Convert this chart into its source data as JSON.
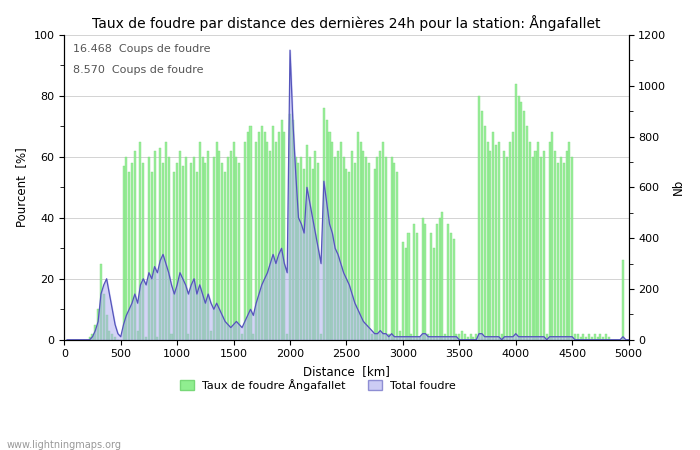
{
  "title": "Taux de foudre par distance des dernières 24h pour la station: Ångafallet",
  "xlabel": "Distance  [km]",
  "ylabel_left": "Pourcent  [%]",
  "ylabel_right": "Nb",
  "annotation_line1": "16.468  Coups de foudre",
  "annotation_line2": "8.570  Coups de foudre",
  "legend_label1": "Taux de foudre Ångafallet",
  "legend_label2": "Total foudre",
  "watermark": "www.lightningmaps.org",
  "xlim": [
    0,
    5000
  ],
  "ylim_left": [
    0,
    100
  ],
  "ylim_right": [
    0,
    1200
  ],
  "bar_color": "#90EE90",
  "bar_edge_color": "#78D878",
  "line_color": "#AAAAEE",
  "line_color2": "#5555BB",
  "bg_color": "#FFFFFF",
  "grid_color": "#999999",
  "title_fontsize": 10,
  "label_fontsize": 8.5,
  "tick_fontsize": 8,
  "x_ticks": [
    0,
    500,
    1000,
    1500,
    2000,
    2500,
    3000,
    3500,
    4000,
    4500,
    5000
  ],
  "y_ticks_left": [
    0,
    20,
    40,
    60,
    80,
    100
  ],
  "y_ticks_right": [
    0,
    200,
    400,
    600,
    800,
    1000,
    1200
  ],
  "bar_positions": [
    25,
    50,
    75,
    100,
    125,
    150,
    175,
    200,
    225,
    250,
    275,
    300,
    325,
    350,
    375,
    400,
    425,
    450,
    475,
    500,
    525,
    550,
    575,
    600,
    625,
    650,
    675,
    700,
    725,
    750,
    775,
    800,
    825,
    850,
    875,
    900,
    925,
    950,
    975,
    1000,
    1025,
    1050,
    1075,
    1100,
    1125,
    1150,
    1175,
    1200,
    1225,
    1250,
    1275,
    1300,
    1325,
    1350,
    1375,
    1400,
    1425,
    1450,
    1475,
    1500,
    1525,
    1550,
    1575,
    1600,
    1625,
    1650,
    1675,
    1700,
    1725,
    1750,
    1775,
    1800,
    1825,
    1850,
    1875,
    1900,
    1925,
    1950,
    1975,
    2000,
    2025,
    2050,
    2075,
    2100,
    2125,
    2150,
    2175,
    2200,
    2225,
    2250,
    2275,
    2300,
    2325,
    2350,
    2375,
    2400,
    2425,
    2450,
    2475,
    2500,
    2525,
    2550,
    2575,
    2600,
    2625,
    2650,
    2675,
    2700,
    2725,
    2750,
    2775,
    2800,
    2825,
    2850,
    2875,
    2900,
    2925,
    2950,
    2975,
    3000,
    3025,
    3050,
    3075,
    3100,
    3125,
    3150,
    3175,
    3200,
    3225,
    3250,
    3275,
    3300,
    3325,
    3350,
    3375,
    3400,
    3425,
    3450,
    3475,
    3500,
    3525,
    3550,
    3575,
    3600,
    3625,
    3650,
    3675,
    3700,
    3725,
    3750,
    3775,
    3800,
    3825,
    3850,
    3875,
    3900,
    3925,
    3950,
    3975,
    4000,
    4025,
    4050,
    4075,
    4100,
    4125,
    4150,
    4175,
    4200,
    4225,
    4250,
    4275,
    4300,
    4325,
    4350,
    4375,
    4400,
    4425,
    4450,
    4475,
    4500,
    4525,
    4550,
    4575,
    4600,
    4625,
    4650,
    4675,
    4700,
    4725,
    4750,
    4775,
    4800,
    4825,
    4850,
    4875,
    4900,
    4925,
    4950,
    4975,
    5000
  ],
  "bar_heights": [
    0,
    0,
    0,
    0,
    0,
    0,
    0,
    0,
    1,
    2,
    5,
    10,
    25,
    15,
    8,
    3,
    2,
    1,
    0,
    0,
    57,
    60,
    55,
    58,
    62,
    3,
    65,
    58,
    1,
    60,
    55,
    62,
    1,
    63,
    58,
    65,
    60,
    2,
    55,
    58,
    62,
    57,
    60,
    2,
    58,
    60,
    55,
    65,
    60,
    58,
    62,
    3,
    60,
    65,
    62,
    58,
    55,
    60,
    62,
    65,
    60,
    58,
    2,
    65,
    68,
    70,
    2,
    65,
    68,
    70,
    68,
    65,
    62,
    70,
    65,
    68,
    72,
    68,
    2,
    74,
    72,
    60,
    58,
    60,
    56,
    64,
    60,
    56,
    62,
    58,
    2,
    76,
    72,
    68,
    65,
    60,
    62,
    65,
    60,
    56,
    55,
    62,
    58,
    68,
    65,
    62,
    60,
    58,
    2,
    56,
    60,
    62,
    65,
    60,
    2,
    60,
    58,
    55,
    3,
    32,
    30,
    35,
    2,
    38,
    35,
    1,
    40,
    38,
    2,
    35,
    30,
    38,
    40,
    42,
    2,
    38,
    35,
    33,
    2,
    2,
    3,
    2,
    1,
    2,
    1,
    2,
    80,
    75,
    70,
    65,
    62,
    68,
    64,
    65,
    2,
    62,
    60,
    65,
    68,
    84,
    80,
    78,
    75,
    70,
    65,
    60,
    62,
    65,
    60,
    62,
    2,
    65,
    68,
    62,
    58,
    60,
    58,
    62,
    65,
    60,
    2,
    2,
    1,
    2,
    1,
    2,
    1,
    2,
    1,
    2,
    1,
    2,
    1,
    0,
    0,
    0,
    0,
    26,
    0,
    0
  ],
  "line_heights": [
    0,
    0,
    0,
    0,
    0,
    0,
    0,
    0,
    0,
    1,
    3,
    6,
    15,
    18,
    20,
    15,
    10,
    5,
    2,
    1,
    5,
    8,
    10,
    12,
    15,
    12,
    18,
    20,
    18,
    22,
    20,
    24,
    22,
    26,
    28,
    25,
    22,
    18,
    15,
    18,
    22,
    20,
    18,
    15,
    18,
    20,
    15,
    18,
    15,
    12,
    15,
    12,
    10,
    12,
    10,
    8,
    6,
    5,
    4,
    5,
    6,
    5,
    4,
    6,
    8,
    10,
    8,
    12,
    15,
    18,
    20,
    22,
    25,
    28,
    25,
    28,
    30,
    25,
    22,
    95,
    72,
    55,
    40,
    38,
    35,
    50,
    45,
    40,
    35,
    30,
    25,
    52,
    45,
    38,
    35,
    30,
    28,
    25,
    22,
    20,
    18,
    15,
    12,
    10,
    8,
    6,
    5,
    4,
    3,
    2,
    2,
    3,
    2,
    2,
    1,
    2,
    1,
    1,
    1,
    1,
    1,
    1,
    1,
    1,
    1,
    1,
    2,
    2,
    1,
    1,
    1,
    1,
    1,
    1,
    1,
    1,
    1,
    1,
    1,
    0,
    0,
    0,
    0,
    0,
    0,
    0,
    2,
    2,
    1,
    1,
    1,
    1,
    1,
    1,
    0,
    1,
    1,
    1,
    1,
    2,
    1,
    1,
    1,
    1,
    1,
    1,
    1,
    1,
    1,
    1,
    0,
    1,
    1,
    1,
    1,
    1,
    1,
    1,
    1,
    1,
    0,
    0,
    0,
    0,
    0,
    0,
    0,
    0,
    0,
    0,
    0,
    0,
    0,
    0,
    0,
    0,
    0,
    1,
    0,
    0
  ]
}
